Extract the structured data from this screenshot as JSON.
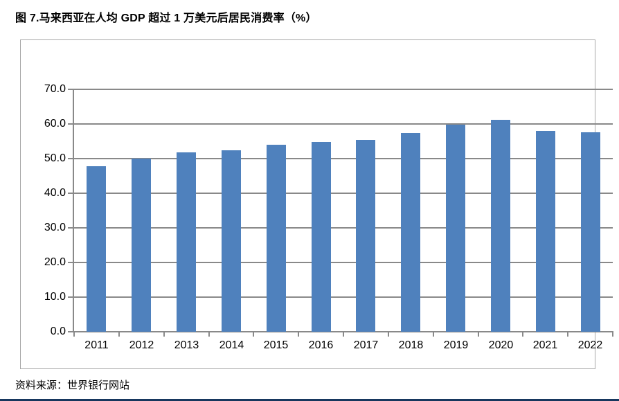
{
  "figure": {
    "title": "图 7.马来西亚在人均 GDP 超过 1 万美元后居民消费率（%）",
    "source": "资料来源：世界银行网站"
  },
  "chart_data": {
    "type": "bar",
    "title": "图 7.马来西亚在人均 GDP 超过 1 万美元后居民消费率（%）",
    "categories": [
      "2011",
      "2012",
      "2013",
      "2014",
      "2015",
      "2016",
      "2017",
      "2018",
      "2019",
      "2020",
      "2021",
      "2022"
    ],
    "values": [
      47.8,
      50.0,
      51.7,
      52.3,
      54.0,
      54.8,
      55.3,
      57.4,
      59.8,
      61.2,
      58.0,
      57.6
    ],
    "xlabel": "",
    "ylabel": "",
    "ylim": [
      0,
      70
    ],
    "ytick_step": 10,
    "ytick_labels": [
      "0.0",
      "10.0",
      "20.0",
      "30.0",
      "40.0",
      "50.0",
      "60.0",
      "70.0"
    ],
    "grid": true,
    "legend_position": "none",
    "source": "资料来源：世界银行网站"
  },
  "colors": {
    "bar": "#4F81BD",
    "gridline": "#898989",
    "panel_border": "#A6A6A6",
    "bottom_rule": "#17375E",
    "text": "#000000"
  }
}
